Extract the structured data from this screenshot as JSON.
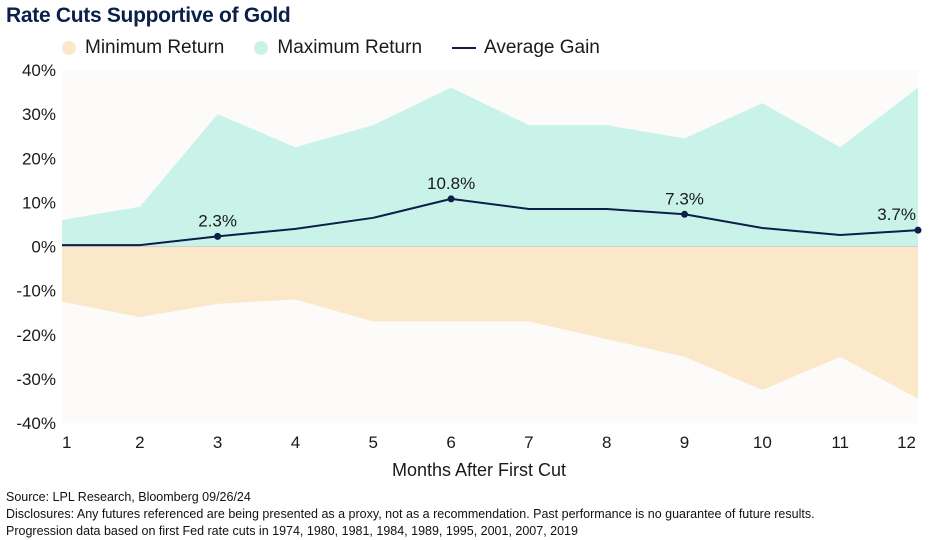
{
  "chart_data": {
    "type": "area",
    "title": "Rate Cuts Supportive of Gold",
    "xlabel": "Months After First Cut",
    "ylabel": "",
    "x": [
      1,
      2,
      3,
      4,
      5,
      6,
      7,
      8,
      9,
      10,
      11,
      12
    ],
    "x_tick_labels": [
      "1",
      "2",
      "3",
      "4",
      "5",
      "6",
      "7",
      "8",
      "9",
      "10",
      "11",
      "12"
    ],
    "ylim": [
      -40,
      40
    ],
    "y_ticks": [
      40,
      30,
      20,
      10,
      0,
      -10,
      -20,
      -30,
      -40
    ],
    "y_tick_labels": [
      "40%",
      "30%",
      "20%",
      "10%",
      "0%",
      "-10%",
      "-20%",
      "-30%",
      "-40%"
    ],
    "series": [
      {
        "name": "Minimum Return",
        "type": "area",
        "color": "#fbe8c8",
        "values": [
          -12.5,
          -16,
          -13,
          -12,
          -17,
          -17,
          -17,
          -21,
          -25,
          -32.5,
          -25,
          -34.5
        ]
      },
      {
        "name": "Maximum Return",
        "type": "area",
        "color": "#c9f3e9",
        "values": [
          6,
          9,
          30,
          22.5,
          27.5,
          36,
          27.5,
          27.5,
          24.5,
          32.5,
          22.5,
          36
        ]
      },
      {
        "name": "Average Gain",
        "type": "line",
        "color": "#0b1f4a",
        "values": [
          0.3,
          0.3,
          2.3,
          4,
          6.5,
          10.8,
          8.5,
          8.5,
          7.3,
          4.2,
          2.6,
          3.7
        ]
      }
    ],
    "annotations": [
      {
        "index": 2,
        "text": "2.3%"
      },
      {
        "index": 5,
        "text": "10.8%"
      },
      {
        "index": 8,
        "text": "7.3%"
      },
      {
        "index": 11,
        "text": "3.7%"
      }
    ]
  },
  "footer": {
    "source": "Source: LPL Research, Bloomberg 09/26/24",
    "disclosures": "Disclosures: Any futures referenced are being presented as a proxy, not as a recommendation. Past performance is no guarantee of future results.",
    "progression": "Progression data based on first Fed rate cuts in 1974, 1980, 1981, 1984, 1989, 1995, 2001, 2007, 2019"
  }
}
